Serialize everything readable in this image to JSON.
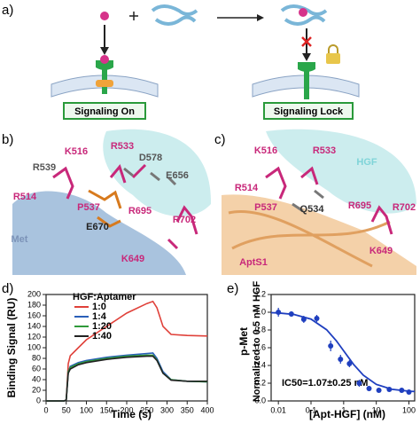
{
  "panel_a": {
    "label": "a)",
    "box_on": "Signaling On",
    "box_lock": "Signaling Lock"
  },
  "panel_b": {
    "label": "b)",
    "residues": [
      "R539",
      "K516",
      "R533",
      "D578",
      "E656",
      "R514",
      "P537",
      "R695",
      "R702",
      "E670",
      "K649",
      "Met"
    ]
  },
  "panel_c": {
    "label": "c)",
    "residues": [
      "HGF",
      "K516",
      "R533",
      "R514",
      "P537",
      "Q534",
      "R695",
      "R702",
      "K649",
      "AptS1"
    ]
  },
  "chart_data": [
    {
      "type": "line",
      "label": "d)",
      "x_label": "Time (s)",
      "y_label": "Binding Signal (RU)",
      "legend_title": "HGF:Aptamer",
      "x": [
        0,
        45,
        50,
        55,
        60,
        80,
        100,
        150,
        200,
        250,
        265,
        275,
        290,
        310,
        350,
        400
      ],
      "series": [
        {
          "name": "1:0",
          "color": "#e0413a",
          "values": [
            0,
            0,
            2,
            70,
            85,
            100,
            115,
            140,
            165,
            183,
            187,
            175,
            140,
            125,
            123,
            122
          ]
        },
        {
          "name": "1:4",
          "color": "#2a5fb8",
          "values": [
            0,
            0,
            2,
            55,
            65,
            72,
            76,
            82,
            86,
            89,
            90,
            80,
            55,
            40,
            37,
            36
          ]
        },
        {
          "name": "1:20",
          "color": "#2f9a3a",
          "values": [
            0,
            0,
            2,
            55,
            63,
            70,
            74,
            80,
            84,
            86,
            86,
            77,
            52,
            40,
            37,
            36
          ]
        },
        {
          "name": "1:40",
          "color": "#222222",
          "values": [
            0,
            0,
            2,
            52,
            60,
            68,
            72,
            78,
            82,
            84,
            84,
            76,
            52,
            39,
            37,
            37
          ]
        }
      ],
      "xlim": [
        0,
        400
      ],
      "xticks": [
        0,
        50,
        100,
        150,
        200,
        250,
        300,
        350,
        400
      ],
      "ylim": [
        0,
        200
      ],
      "yticks": [
        0,
        20,
        40,
        60,
        80,
        100,
        120,
        140,
        160,
        180,
        200
      ]
    },
    {
      "type": "scatter",
      "label": "e)",
      "x_label": "[Apt-HGF] (nM)",
      "y_label": "p-Met",
      "y_label2": "Normalized to 0.5 nM HGF",
      "annotation": "IC50=1.07±0.25 nM",
      "xscale": "log",
      "color": "#1f3fbf",
      "x": [
        0.01,
        0.025,
        0.06,
        0.15,
        0.4,
        0.8,
        1.5,
        3,
        6,
        12,
        25,
        60,
        100
      ],
      "values": [
        1.0,
        0.98,
        0.92,
        0.93,
        0.62,
        0.47,
        0.42,
        0.2,
        0.14,
        0.12,
        0.13,
        0.12,
        0.1
      ],
      "errors": [
        0.05,
        0.03,
        0.04,
        0.04,
        0.06,
        0.05,
        0.04,
        0.04,
        0.03,
        0.02,
        0.02,
        0.02,
        0.02
      ],
      "fit": {
        "x": [
          0.006,
          0.01,
          0.03,
          0.1,
          0.3,
          0.6,
          1,
          2,
          4,
          10,
          30,
          100,
          150
        ],
        "values": [
          0.995,
          0.992,
          0.975,
          0.923,
          0.803,
          0.677,
          0.565,
          0.413,
          0.29,
          0.187,
          0.131,
          0.11,
          0.106
        ]
      },
      "xlim": [
        0.006,
        150
      ],
      "xticks": [
        0.01,
        0.1,
        1,
        10,
        100
      ],
      "ylim": [
        0,
        1.2
      ],
      "yticks": [
        {
          "value": 0,
          "label": "0.0"
        },
        0.2,
        0.4,
        0.6,
        0.8,
        {
          "value": 1,
          "label": "1.0"
        },
        1.2
      ]
    }
  ]
}
